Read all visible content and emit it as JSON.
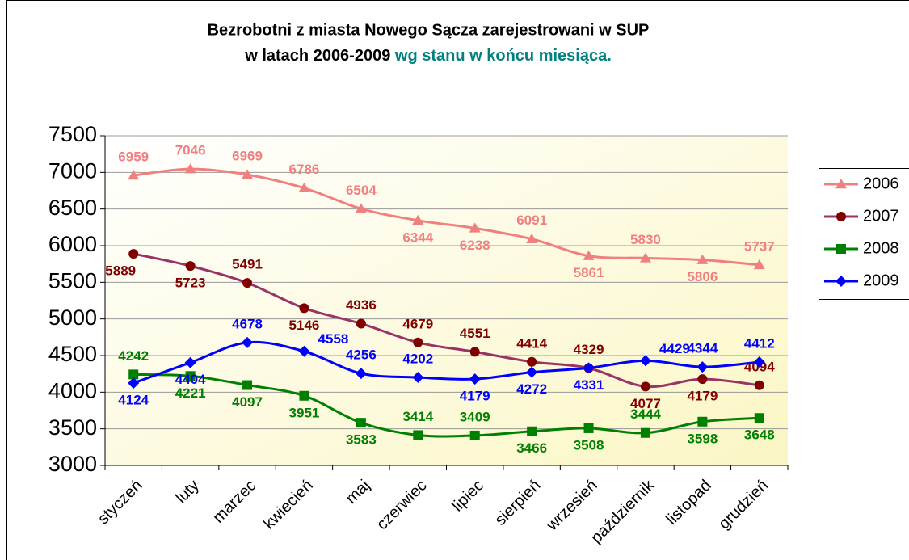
{
  "chart_data": {
    "type": "line",
    "title": [
      "Bezrobotni z miasta Nowego Sącza zarejestrowani w SUP",
      "w latach 2006-2009",
      "wg stanu w końcu miesiąca."
    ],
    "categories": [
      "styczeń",
      "luty",
      "marzec",
      "kwiecień",
      "maj",
      "czerwiec",
      "lipiec",
      "sierpień",
      "wrzesień",
      "październik",
      "listopad",
      "grudzień"
    ],
    "series": [
      {
        "name": "2006",
        "color": "#f08080",
        "label_color": "#f08080",
        "marker": "triangle",
        "values": [
          6959,
          7046,
          6969,
          6786,
          6504,
          6344,
          6238,
          6091,
          5861,
          5830,
          5806,
          5737
        ]
      },
      {
        "name": "2007",
        "color": "#993366",
        "label_color": "#800000",
        "marker": "circle",
        "values": [
          5889,
          5723,
          5491,
          5146,
          4936,
          4679,
          4551,
          4414,
          4329,
          4077,
          4179,
          4094
        ]
      },
      {
        "name": "2008",
        "color": "#008000",
        "label_color": "#008000",
        "marker": "square",
        "values": [
          4242,
          4221,
          4097,
          3951,
          3583,
          3414,
          3409,
          3466,
          3508,
          3444,
          3598,
          3648
        ]
      },
      {
        "name": "2009",
        "color": "#0000ff",
        "label_color": "#0000ff",
        "marker": "diamond",
        "values": [
          4124,
          4404,
          4678,
          4558,
          4256,
          4202,
          4179,
          4272,
          4331,
          4429,
          4344,
          4412
        ]
      }
    ],
    "ylim": [
      3000,
      7500
    ],
    "yticks": [
      3000,
      3500,
      4000,
      4500,
      5000,
      5500,
      6000,
      6500,
      7000,
      7500
    ],
    "grid": true,
    "legend": "right"
  }
}
